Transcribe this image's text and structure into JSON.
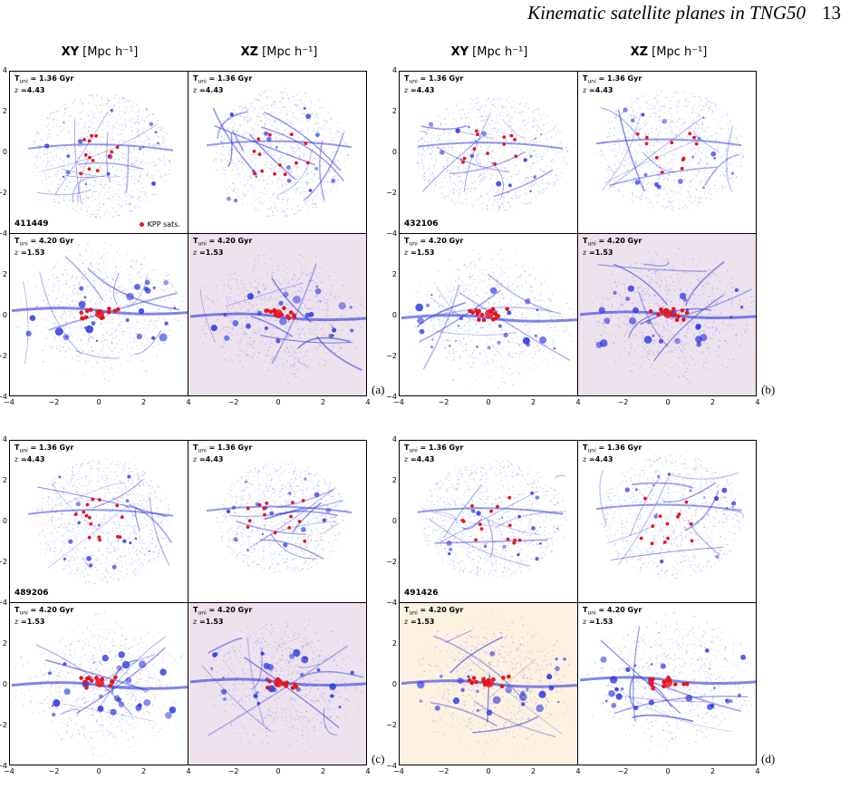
{
  "header": {
    "title": "Kinematic satellite planes in TNG50",
    "page": "13"
  },
  "column_titles": {
    "xy_bold": "XY",
    "xz_bold": "XZ",
    "unit": "[Mpc h⁻¹]"
  },
  "epochs": {
    "early": {
      "t_label": "T",
      "t_sub": "uni",
      "t_value": " = 1.36 Gyr",
      "z_label": "z",
      "z_value": " =4.43"
    },
    "late": {
      "t_label": "T",
      "t_sub": "uni",
      "t_value": " = 4.20 Gyr",
      "z_label": "z",
      "z_value": " =1.53"
    }
  },
  "legend_label": "KPP sats.",
  "ticks": {
    "y": [
      "4",
      "2",
      "0",
      "−2",
      "−4"
    ],
    "x": [
      "−4",
      "−2",
      "0",
      "2",
      "4"
    ]
  },
  "colors": {
    "filament": "#2a35e0",
    "satellite": "#e8141e",
    "purple_bg": "#ede2ee",
    "orange_bg": "#fdf1e1"
  },
  "figures": [
    {
      "label": "(a)",
      "halo_id": "411449",
      "show_legend": true,
      "late_bg": [
        "white",
        "purple"
      ]
    },
    {
      "label": "(b)",
      "halo_id": "432106",
      "show_legend": false,
      "late_bg": [
        "white",
        "purple"
      ]
    },
    {
      "label": "(c)",
      "halo_id": "489206",
      "show_legend": false,
      "late_bg": [
        "white",
        "purple"
      ]
    },
    {
      "label": "(d)",
      "halo_id": "491426",
      "show_legend": false,
      "late_bg": [
        "orange",
        "white"
      ]
    }
  ]
}
